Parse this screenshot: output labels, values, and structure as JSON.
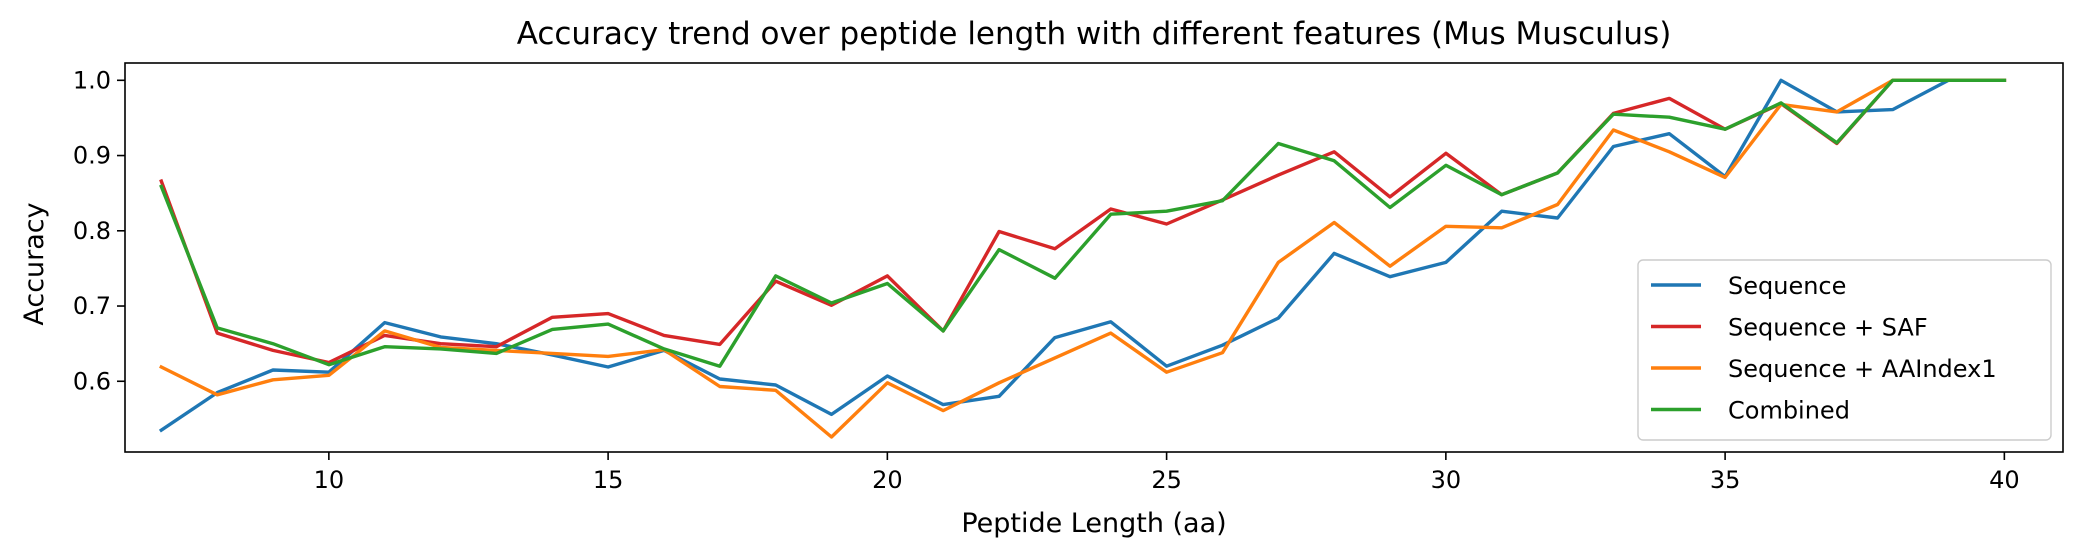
{
  "chart_data": {
    "type": "line",
    "title": "Accuracy trend over peptide length with different features (Mus Musculus)",
    "xlabel": "Peptide Length (aa)",
    "ylabel": "Accuracy",
    "xlim": [
      6.35,
      41.05
    ],
    "ylim": [
      0.506,
      1.023
    ],
    "xticks": [
      10,
      15,
      20,
      25,
      30,
      35,
      40
    ],
    "yticks": [
      0.6,
      0.7,
      0.8,
      0.9,
      1.0
    ],
    "xtick_labels": [
      "10",
      "15",
      "20",
      "25",
      "30",
      "35",
      "40"
    ],
    "ytick_labels": [
      "0.6",
      "0.7",
      "0.8",
      "0.9",
      "1.0"
    ],
    "grid": false,
    "legend_position": "lower-right",
    "x": [
      7,
      8,
      9,
      10,
      11,
      12,
      13,
      14,
      15,
      16,
      17,
      18,
      19,
      20,
      21,
      22,
      23,
      24,
      25,
      26,
      27,
      28,
      29,
      30,
      31,
      32,
      33,
      34,
      35,
      36,
      37,
      38,
      39,
      40
    ],
    "series": [
      {
        "name": "Sequence",
        "color": "#1f77b4",
        "values": [
          0.535,
          0.585,
          0.615,
          0.612,
          0.678,
          0.659,
          0.65,
          0.635,
          0.619,
          0.641,
          0.603,
          0.595,
          0.556,
          0.607,
          0.569,
          0.58,
          0.658,
          0.679,
          0.62,
          0.648,
          0.684,
          0.77,
          0.739,
          0.758,
          0.826,
          0.817,
          0.912,
          0.929,
          0.872,
          1.0,
          0.958,
          0.961,
          1.0,
          1.0
        ]
      },
      {
        "name": "Sequence + SAF",
        "color": "#d62728",
        "values": [
          0.866,
          0.664,
          0.641,
          0.625,
          0.661,
          0.65,
          0.646,
          0.685,
          0.69,
          0.661,
          0.649,
          0.733,
          0.701,
          0.74,
          0.667,
          0.799,
          0.776,
          0.829,
          0.809,
          0.841,
          0.874,
          0.905,
          0.845,
          0.903,
          0.848,
          0.877,
          0.956,
          0.976,
          0.935,
          0.969,
          0.916,
          1.0,
          1.0,
          1.0
        ]
      },
      {
        "name": "Sequence + AAIndex1",
        "color": "#ff7f0e",
        "values": [
          0.619,
          0.582,
          0.602,
          0.608,
          0.667,
          0.645,
          0.641,
          0.637,
          0.633,
          0.642,
          0.593,
          0.588,
          0.526,
          0.598,
          0.561,
          0.598,
          0.631,
          0.664,
          0.612,
          0.638,
          0.758,
          0.811,
          0.753,
          0.806,
          0.804,
          0.835,
          0.934,
          0.905,
          0.871,
          0.968,
          0.958,
          1.0,
          1.0,
          1.0
        ]
      },
      {
        "name": "Combined",
        "color": "#2ca02c",
        "values": [
          0.859,
          0.671,
          0.65,
          0.622,
          0.646,
          0.643,
          0.637,
          0.669,
          0.676,
          0.643,
          0.62,
          0.74,
          0.704,
          0.73,
          0.667,
          0.775,
          0.737,
          0.822,
          0.826,
          0.84,
          0.916,
          0.893,
          0.831,
          0.887,
          0.848,
          0.877,
          0.955,
          0.951,
          0.935,
          0.97,
          0.917,
          1.0,
          1.0,
          1.0
        ]
      }
    ]
  }
}
